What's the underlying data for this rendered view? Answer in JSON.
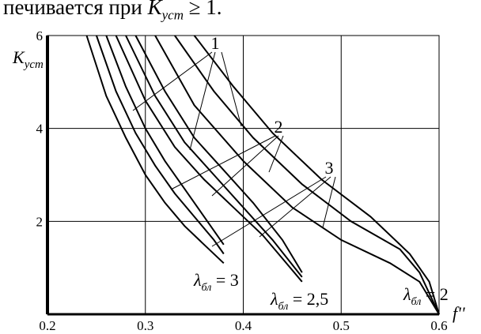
{
  "header_text": "печивается при K_уст ≥ 1.",
  "chart_data": {
    "type": "line",
    "ylabel": "K_уст",
    "xlabel": "f''",
    "xlim": [
      0.2,
      0.6
    ],
    "ylim": [
      0,
      6
    ],
    "x_ticks": [
      "0.2",
      "0.3",
      "0.4",
      "0.5",
      "0.6"
    ],
    "y_ticks": [
      "2",
      "4",
      "6"
    ],
    "grid": true,
    "curve_group_labels": [
      "1",
      "2",
      "3"
    ],
    "lambda_labels": [
      "λбл = 3",
      "λбл = 2,5",
      "λбл = 2"
    ],
    "series": [
      {
        "group": "λ=3",
        "x": [
          0.24,
          0.26,
          0.28,
          0.3,
          0.32,
          0.34,
          0.36,
          0.38
        ],
        "y": [
          6.0,
          4.7,
          3.8,
          3.0,
          2.4,
          1.9,
          1.5,
          1.1
        ]
      },
      {
        "group": "λ=3",
        "x": [
          0.25,
          0.27,
          0.29,
          0.31,
          0.33,
          0.35,
          0.37,
          0.38
        ],
        "y": [
          6.0,
          4.8,
          3.9,
          3.2,
          2.6,
          2.1,
          1.6,
          1.3
        ]
      },
      {
        "group": "λ=3",
        "x": [
          0.26,
          0.28,
          0.3,
          0.32,
          0.34,
          0.36,
          0.38
        ],
        "y": [
          6.0,
          4.9,
          4.0,
          3.3,
          2.7,
          2.1,
          1.5
        ]
      },
      {
        "group": "λ=2.5",
        "x": [
          0.27,
          0.3,
          0.33,
          0.36,
          0.39,
          0.42,
          0.44,
          0.46
        ],
        "y": [
          6.0,
          4.6,
          3.6,
          2.9,
          2.3,
          1.7,
          1.2,
          0.7
        ]
      },
      {
        "group": "λ=2.5",
        "x": [
          0.28,
          0.31,
          0.34,
          0.37,
          0.4,
          0.43,
          0.46
        ],
        "y": [
          6.0,
          4.7,
          3.7,
          3.0,
          2.3,
          1.6,
          0.8
        ]
      },
      {
        "group": "λ=2.5",
        "x": [
          0.29,
          0.32,
          0.35,
          0.38,
          0.41,
          0.44,
          0.46
        ],
        "y": [
          6.0,
          4.8,
          3.8,
          3.1,
          2.4,
          1.6,
          0.9
        ]
      },
      {
        "group": "λ=2",
        "x": [
          0.31,
          0.35,
          0.4,
          0.45,
          0.5,
          0.55,
          0.58,
          0.6
        ],
        "y": [
          6.0,
          4.5,
          3.3,
          2.3,
          1.6,
          1.1,
          0.7,
          0.0
        ]
      },
      {
        "group": "λ=2",
        "x": [
          0.33,
          0.37,
          0.41,
          0.46,
          0.51,
          0.56,
          0.58,
          0.6
        ],
        "y": [
          6.0,
          4.8,
          3.8,
          2.8,
          2.0,
          1.4,
          0.9,
          0.0
        ]
      },
      {
        "group": "λ=2",
        "x": [
          0.35,
          0.39,
          0.43,
          0.48,
          0.53,
          0.57,
          0.59,
          0.6
        ],
        "y": [
          6.0,
          4.9,
          3.9,
          2.9,
          2.1,
          1.3,
          0.7,
          0.0
        ]
      }
    ]
  }
}
